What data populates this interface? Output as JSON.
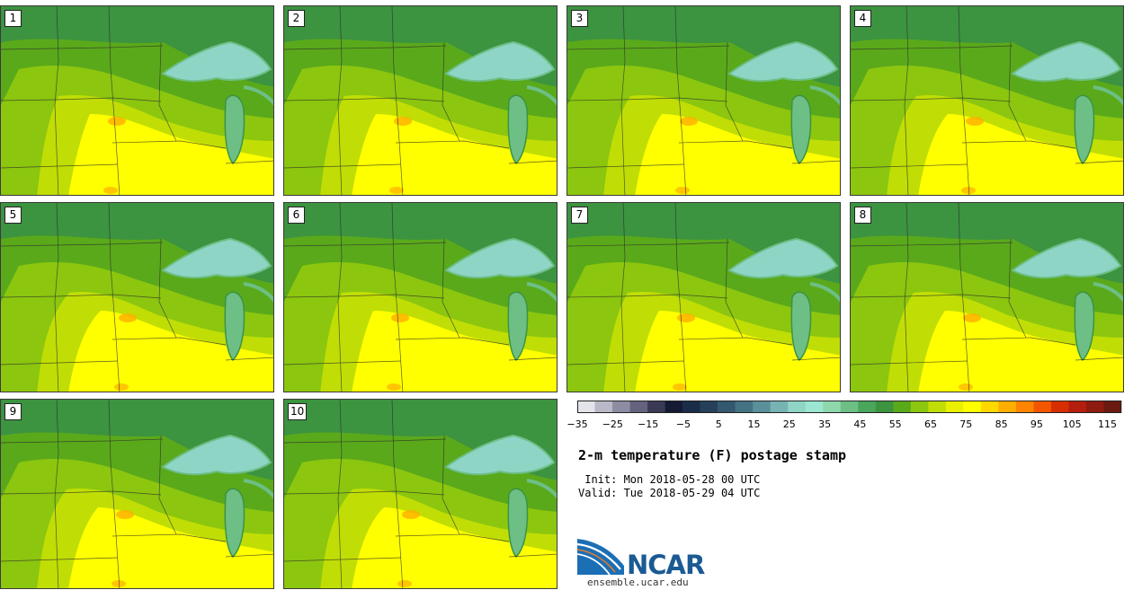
{
  "panels": [
    "1",
    "2",
    "3",
    "4",
    "5",
    "6",
    "7",
    "8",
    "9",
    "10"
  ],
  "colorbar": {
    "ticks": [
      "−35",
      "−25",
      "−15",
      "−5",
      "5",
      "15",
      "25",
      "35",
      "45",
      "55",
      "65",
      "75",
      "85",
      "95",
      "105",
      "115"
    ],
    "colors": [
      "#e3e3ea",
      "#b8b8c8",
      "#8c8ca2",
      "#63637d",
      "#3a3a55",
      "#141b33",
      "#1a2c47",
      "#26405b",
      "#33586f",
      "#437283",
      "#5b8f99",
      "#77b3b3",
      "#8fd5c6",
      "#9be6d2",
      "#8ed7ad",
      "#6dbf86",
      "#4aa65a",
      "#3c9340",
      "#5aa91b",
      "#8cc60f",
      "#c0de05",
      "#e9f000",
      "#ffff00",
      "#ffd800",
      "#ffae00",
      "#ff8500",
      "#f25600",
      "#d72e00",
      "#b41e0e",
      "#8e1a10",
      "#6a1a10"
    ]
  },
  "title": "2-m temperature (F) postage stamp",
  "init_line": " Init: Mon 2018-05-28 00 UTC",
  "valid_line": "Valid: Tue 2018-05-29 04 UTC",
  "logo": {
    "text": "NCAR",
    "site": "ensemble.ucar.edu",
    "brand_color": "#1b5a93"
  },
  "map_colors": {
    "cold_green": "#3c9340",
    "mid_green": "#5aa91b",
    "lime": "#8cc60f",
    "yellow_green": "#c0de05",
    "yellow": "#ffff00",
    "orange_hot": "#ffae00",
    "lake": "#8fd5c6",
    "lake_edge": "#6dbf86"
  }
}
